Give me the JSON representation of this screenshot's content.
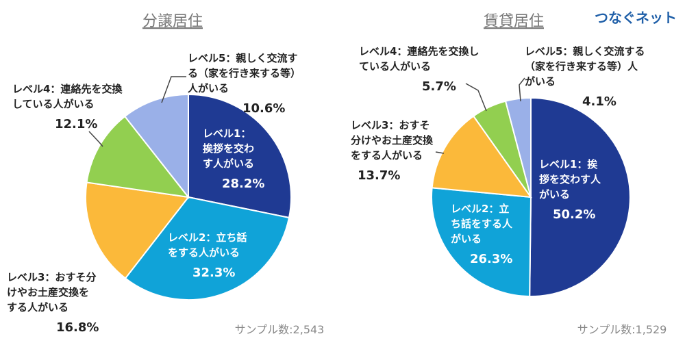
{
  "brand": "つなぐネット",
  "colors": {
    "level1": "#1f3a93",
    "level2": "#10a3d8",
    "level3": "#fbb93a",
    "level4": "#92cf50",
    "level5": "#9ab0e8",
    "title": "#777777",
    "sample": "#888888"
  },
  "chart_data": [
    {
      "type": "pie",
      "title": "分譲居住",
      "sample": "サンプル数:2,543",
      "slices": [
        {
          "label_lines": [
            "レベル1：",
            "挨拶を交わ",
            "す人がいる"
          ],
          "value_text": "28.2%",
          "value": 28.2
        },
        {
          "label_lines": [
            "レベル2：立ち話",
            "をする人がいる"
          ],
          "value_text": "32.3%",
          "value": 32.3
        },
        {
          "label_lines": [
            "レベル3：おすそ分",
            "けやお土産交換を",
            "する人がいる"
          ],
          "value_text": "16.8%",
          "value": 16.8
        },
        {
          "label_lines": [
            "レベル4：連絡先を交換",
            "している人がいる"
          ],
          "value_text": "12.1%",
          "value": 12.1
        },
        {
          "label_lines": [
            "レベル5：親しく交流す",
            "る（家を行き来する等）",
            "人がいる"
          ],
          "value_text": "10.6%",
          "value": 10.6
        }
      ]
    },
    {
      "type": "pie",
      "title": "賃貸居住",
      "sample": "サンプル数:1,529",
      "slices": [
        {
          "label_lines": [
            "レベル1：挨",
            "拶を交わす人",
            "がいる"
          ],
          "value_text": "50.2%",
          "value": 50.2
        },
        {
          "label_lines": [
            "レベル2：立",
            "ち話をする人",
            "がいる"
          ],
          "value_text": "26.3%",
          "value": 26.3
        },
        {
          "label_lines": [
            "レベル3：おすそ",
            "分けやお土産交換",
            "をする人がいる"
          ],
          "value_text": "13.7%",
          "value": 13.7
        },
        {
          "label_lines": [
            "レベル4：連絡先を交換し",
            "ている人がいる"
          ],
          "value_text": "5.7%",
          "value": 5.7
        },
        {
          "label_lines": [
            "レベル5：親しく交流する",
            "（家を行き来する等）人",
            "がいる"
          ],
          "value_text": "4.1%",
          "value": 4.1
        }
      ]
    }
  ]
}
